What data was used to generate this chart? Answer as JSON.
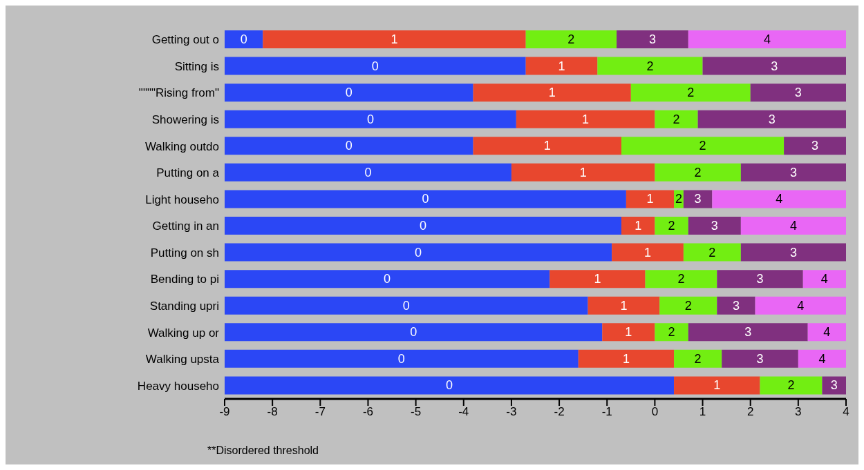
{
  "chart_data": {
    "type": "bar",
    "orientation": "horizontal",
    "categories": [
      "Getting out o",
      "Sitting is",
      "\"\"\"\"Rising from\"",
      "Showering is",
      "Walking outdo",
      "Putting on a",
      "Light househo",
      "Getting in an",
      "Putting on sh",
      "Bending to pi",
      "Standing upri",
      "Walking up or",
      "Walking upsta",
      "Heavy househo"
    ],
    "series": [
      {
        "name": "0",
        "color": "#2b47f5",
        "base": [
          -9,
          -9,
          -9,
          -9,
          -9,
          -9,
          -9,
          -9,
          -9,
          -9,
          -9,
          -9,
          -9,
          -9
        ],
        "values": [
          0.8,
          6.3,
          5.2,
          6.1,
          5.2,
          6.0,
          8.4,
          8.3,
          8.1,
          6.8,
          7.6,
          7.9,
          7.4,
          9.4
        ]
      },
      {
        "name": "1",
        "color": "#e8472e",
        "base": [
          -8.2,
          -2.7,
          -3.8,
          -2.9,
          -3.8,
          -3.0,
          -0.6,
          -0.7,
          -0.9,
          -2.2,
          -1.4,
          -1.1,
          -1.6,
          0.4
        ],
        "values": [
          5.5,
          1.5,
          3.3,
          2.9,
          3.1,
          3.0,
          1.0,
          0.7,
          1.5,
          2.0,
          1.5,
          1.1,
          2.0,
          1.8
        ]
      },
      {
        "name": "2",
        "color": "#72ee12",
        "base": [
          -2.7,
          -1.2,
          -0.5,
          0.0,
          -0.7,
          0.0,
          0.4,
          0.0,
          0.6,
          -0.2,
          0.1,
          0.0,
          0.4,
          2.2
        ],
        "values": [
          1.9,
          2.2,
          2.5,
          0.9,
          3.4,
          1.8,
          0.2,
          0.7,
          1.2,
          1.5,
          1.2,
          0.7,
          1.0,
          1.3
        ]
      },
      {
        "name": "3",
        "color": "#80307f",
        "base": [
          -0.8,
          1.0,
          2.0,
          0.9,
          2.7,
          1.8,
          0.6,
          0.7,
          1.8,
          1.3,
          1.3,
          0.7,
          1.4,
          3.5
        ],
        "values": [
          1.5,
          3.0,
          2.0,
          3.1,
          1.3,
          2.2,
          0.6,
          1.1,
          2.2,
          1.8,
          0.8,
          2.5,
          1.6,
          0.5
        ]
      },
      {
        "name": "4",
        "color": "#e967f5",
        "base": [
          0.7,
          null,
          null,
          null,
          null,
          null,
          1.2,
          1.8,
          null,
          3.1,
          2.1,
          3.2,
          3.0,
          null
        ],
        "values": [
          3.3,
          null,
          null,
          null,
          null,
          null,
          2.8,
          2.2,
          null,
          0.9,
          1.9,
          0.8,
          1.0,
          null
        ]
      }
    ],
    "xlim": [
      -9,
      4
    ],
    "xticks": [
      {
        "value": -9,
        "label": "-9"
      },
      {
        "value": -8,
        "label": "-8"
      },
      {
        "value": -7,
        "label": "-7"
      },
      {
        "value": -6,
        "label": "-6"
      },
      {
        "value": -5,
        "label": "-5"
      },
      {
        "value": -4,
        "label": "-4"
      },
      {
        "value": -3,
        "label": "-3"
      },
      {
        "value": -2,
        "label": "-2"
      },
      {
        "value": -1,
        "label": "-1"
      },
      0,
      1,
      2,
      3,
      4
    ],
    "grid": false,
    "legend": false,
    "annotations": [
      "**Disordered threshold"
    ]
  }
}
